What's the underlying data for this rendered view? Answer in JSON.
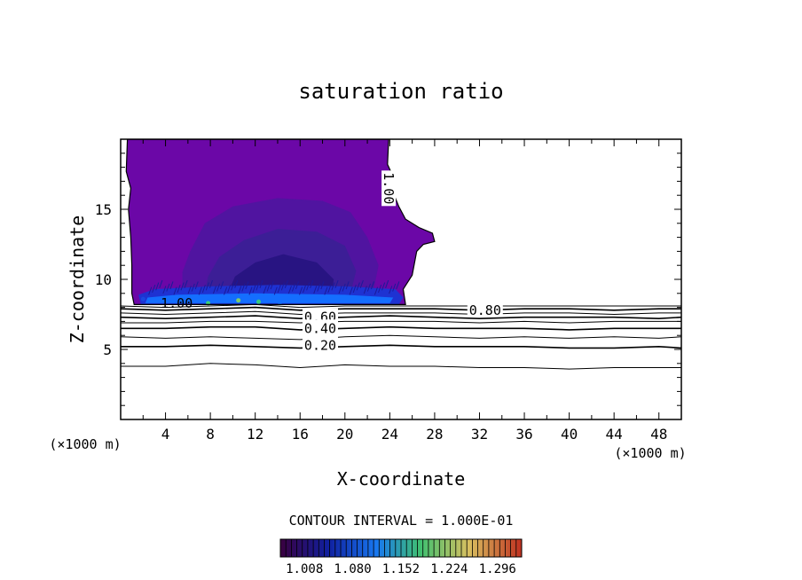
{
  "chart_data": {
    "type": "heatmap",
    "title": "saturation ratio",
    "xlabel": "X-coordinate",
    "ylabel": "Z-coordinate",
    "x_unit": "(×1000 m)",
    "z_unit": "(×1000 m)",
    "xlim": [
      0,
      50
    ],
    "ylim": [
      0,
      20
    ],
    "xticks": [
      4,
      8,
      12,
      16,
      20,
      24,
      28,
      32,
      36,
      40,
      44,
      48
    ],
    "yticks": [
      5,
      10,
      15
    ],
    "contour_interval_text": "CONTOUR INTERVAL = 1.000E-01",
    "colorbar": {
      "ticks": [
        1.008,
        1.08,
        1.152,
        1.224,
        1.296
      ],
      "tick_labels": [
        "1.008",
        "1.080",
        "1.152",
        "1.224",
        "1.296"
      ],
      "colors": [
        "#3a0040",
        "#1020a0",
        "#1878f0",
        "#40c070",
        "#d8c060",
        "#c03020"
      ]
    },
    "contour_labels": [
      {
        "text": "1.00",
        "x": 5.0,
        "y": 8.3
      },
      {
        "text": "0.60",
        "x": 17.8,
        "y": 7.3
      },
      {
        "text": "0.40",
        "x": 17.8,
        "y": 6.5
      },
      {
        "text": "0.20",
        "x": 17.8,
        "y": 5.3
      },
      {
        "text": "0.80",
        "x": 32.5,
        "y": 7.8
      },
      {
        "text": "1.00",
        "x": 23.9,
        "y": 16.5
      }
    ],
    "contour_lines": [
      {
        "level": 0.1,
        "points": [
          [
            0,
            3.8
          ],
          [
            4,
            3.8
          ],
          [
            8,
            4.0
          ],
          [
            12,
            3.9
          ],
          [
            16,
            3.7
          ],
          [
            20,
            3.9
          ],
          [
            24,
            3.8
          ],
          [
            28,
            3.8
          ],
          [
            32,
            3.7
          ],
          [
            36,
            3.7
          ],
          [
            40,
            3.6
          ],
          [
            44,
            3.7
          ],
          [
            48,
            3.7
          ],
          [
            50,
            3.7
          ]
        ]
      },
      {
        "level": 0.2,
        "points": [
          [
            0,
            5.2
          ],
          [
            4,
            5.2
          ],
          [
            8,
            5.3
          ],
          [
            12,
            5.2
          ],
          [
            16,
            5.1
          ],
          [
            20,
            5.2
          ],
          [
            24,
            5.3
          ],
          [
            28,
            5.2
          ],
          [
            32,
            5.2
          ],
          [
            36,
            5.2
          ],
          [
            40,
            5.1
          ],
          [
            44,
            5.1
          ],
          [
            48,
            5.2
          ],
          [
            50,
            5.1
          ]
        ]
      },
      {
        "level": 0.3,
        "points": [
          [
            0,
            5.9
          ],
          [
            4,
            5.8
          ],
          [
            8,
            5.9
          ],
          [
            12,
            5.8
          ],
          [
            16,
            5.7
          ],
          [
            20,
            5.9
          ],
          [
            24,
            6.0
          ],
          [
            28,
            5.9
          ],
          [
            32,
            5.8
          ],
          [
            36,
            5.9
          ],
          [
            40,
            5.8
          ],
          [
            44,
            5.9
          ],
          [
            48,
            5.8
          ],
          [
            50,
            5.9
          ]
        ]
      },
      {
        "level": 0.4,
        "points": [
          [
            0,
            6.5
          ],
          [
            4,
            6.5
          ],
          [
            8,
            6.6
          ],
          [
            12,
            6.6
          ],
          [
            16,
            6.4
          ],
          [
            20,
            6.5
          ],
          [
            24,
            6.6
          ],
          [
            28,
            6.5
          ],
          [
            32,
            6.5
          ],
          [
            36,
            6.5
          ],
          [
            40,
            6.4
          ],
          [
            44,
            6.5
          ],
          [
            48,
            6.5
          ],
          [
            50,
            6.5
          ]
        ]
      },
      {
        "level": 0.5,
        "points": [
          [
            0,
            6.9
          ],
          [
            4,
            6.9
          ],
          [
            8,
            7.0
          ],
          [
            12,
            7.0
          ],
          [
            16,
            6.9
          ],
          [
            20,
            7.0
          ],
          [
            24,
            7.0
          ],
          [
            28,
            7.0
          ],
          [
            32,
            6.9
          ],
          [
            36,
            7.0
          ],
          [
            40,
            6.9
          ],
          [
            44,
            7.0
          ],
          [
            48,
            7.0
          ],
          [
            50,
            7.0
          ]
        ]
      },
      {
        "level": 0.6,
        "points": [
          [
            0,
            7.3
          ],
          [
            4,
            7.2
          ],
          [
            8,
            7.3
          ],
          [
            12,
            7.4
          ],
          [
            16,
            7.2
          ],
          [
            20,
            7.3
          ],
          [
            24,
            7.4
          ],
          [
            28,
            7.3
          ],
          [
            32,
            7.2
          ],
          [
            36,
            7.3
          ],
          [
            40,
            7.3
          ],
          [
            44,
            7.3
          ],
          [
            48,
            7.2
          ],
          [
            50,
            7.3
          ]
        ]
      },
      {
        "level": 0.7,
        "points": [
          [
            0,
            7.6
          ],
          [
            4,
            7.5
          ],
          [
            8,
            7.6
          ],
          [
            12,
            7.7
          ],
          [
            16,
            7.5
          ],
          [
            20,
            7.6
          ],
          [
            24,
            7.6
          ],
          [
            28,
            7.6
          ],
          [
            32,
            7.5
          ],
          [
            36,
            7.6
          ],
          [
            40,
            7.6
          ],
          [
            44,
            7.5
          ],
          [
            48,
            7.6
          ],
          [
            50,
            7.6
          ]
        ]
      },
      {
        "level": 0.8,
        "points": [
          [
            0,
            7.9
          ],
          [
            4,
            7.8
          ],
          [
            8,
            7.9
          ],
          [
            12,
            8.0
          ],
          [
            16,
            7.8
          ],
          [
            20,
            7.9
          ],
          [
            24,
            7.9
          ],
          [
            28,
            7.9
          ],
          [
            32,
            7.8
          ],
          [
            36,
            7.9
          ],
          [
            40,
            7.9
          ],
          [
            44,
            7.8
          ],
          [
            48,
            7.9
          ],
          [
            50,
            7.9
          ]
        ]
      },
      {
        "level": 0.9,
        "points": [
          [
            0,
            8.1
          ],
          [
            4,
            8.0
          ],
          [
            8,
            8.1
          ],
          [
            12,
            8.2
          ],
          [
            16,
            8.0
          ],
          [
            20,
            8.1
          ],
          [
            24,
            8.1
          ],
          [
            28,
            8.1
          ],
          [
            32,
            8.1
          ],
          [
            36,
            8.1
          ],
          [
            40,
            8.1
          ],
          [
            44,
            8.1
          ],
          [
            48,
            8.1
          ],
          [
            50,
            8.1
          ]
        ]
      }
    ],
    "supersaturated_region": {
      "level": 1.0,
      "outline": [
        [
          1.2,
          8.2
        ],
        [
          25.4,
          8.2
        ],
        [
          25.2,
          9.3
        ],
        [
          26.0,
          10.3
        ],
        [
          26.4,
          12.0
        ],
        [
          27.0,
          12.5
        ],
        [
          28.0,
          12.7
        ],
        [
          27.8,
          13.3
        ],
        [
          26.6,
          13.7
        ],
        [
          25.4,
          14.3
        ],
        [
          24.8,
          15.2
        ],
        [
          24.4,
          16.0
        ],
        [
          23.6,
          16.5
        ],
        [
          23.7,
          17.0
        ],
        [
          24.2,
          17.5
        ],
        [
          23.8,
          18.2
        ],
        [
          23.9,
          20.0
        ],
        [
          0.6,
          20.0
        ],
        [
          0.5,
          17.7
        ],
        [
          0.9,
          16.5
        ],
        [
          0.7,
          15.0
        ],
        [
          0.9,
          13.0
        ],
        [
          1.0,
          11.0
        ],
        [
          1.0,
          9.0
        ]
      ],
      "layers": [
        {
          "value": 1.01,
          "outline": [
            [
              1.2,
              8.2
            ],
            [
              25.4,
              8.2
            ],
            [
              25.2,
              9.3
            ],
            [
              26.0,
              10.3
            ],
            [
              26.4,
              12.0
            ],
            [
              27.0,
              12.5
            ],
            [
              28.0,
              12.7
            ],
            [
              27.8,
              13.3
            ],
            [
              26.6,
              13.7
            ],
            [
              25.4,
              14.3
            ],
            [
              24.8,
              15.2
            ],
            [
              24.4,
              16.0
            ],
            [
              23.6,
              16.5
            ],
            [
              23.7,
              17.0
            ],
            [
              24.2,
              17.5
            ],
            [
              23.8,
              18.2
            ],
            [
              23.9,
              20.0
            ],
            [
              0.6,
              20.0
            ],
            [
              0.5,
              17.7
            ],
            [
              0.9,
              16.5
            ],
            [
              0.7,
              15.0
            ],
            [
              0.9,
              13.0
            ],
            [
              1.0,
              11.0
            ],
            [
              1.0,
              9.0
            ]
          ]
        },
        {
          "value": 1.03,
          "outline": [
            [
              5.5,
              9.0
            ],
            [
              22.5,
              9.0
            ],
            [
              23.0,
              11.0
            ],
            [
              22.0,
              13.0
            ],
            [
              20.5,
              14.8
            ],
            [
              18.0,
              15.6
            ],
            [
              14.0,
              15.8
            ],
            [
              10.0,
              15.2
            ],
            [
              7.5,
              14.0
            ],
            [
              6.2,
              12.0
            ],
            [
              5.5,
              10.5
            ]
          ]
        },
        {
          "value": 1.05,
          "outline": [
            [
              7.5,
              9.0
            ],
            [
              20.5,
              9.0
            ],
            [
              21.0,
              10.6
            ],
            [
              20.0,
              12.4
            ],
            [
              17.5,
              13.4
            ],
            [
              14.0,
              13.6
            ],
            [
              11.0,
              12.8
            ],
            [
              8.8,
              11.6
            ],
            [
              7.8,
              10.2
            ]
          ]
        },
        {
          "value": 1.07,
          "outline": [
            [
              9.5,
              8.9
            ],
            [
              18.8,
              8.9
            ],
            [
              19.0,
              10.0
            ],
            [
              17.5,
              11.2
            ],
            [
              14.5,
              11.8
            ],
            [
              12.0,
              11.2
            ],
            [
              10.2,
              10.2
            ]
          ]
        },
        {
          "value": 1.09,
          "outline": [
            [
              1.8,
              8.2
            ],
            [
              24.8,
              8.2
            ],
            [
              25.2,
              8.7
            ],
            [
              24.5,
              9.3
            ],
            [
              20.0,
              9.5
            ],
            [
              14.0,
              9.6
            ],
            [
              8.0,
              9.5
            ],
            [
              3.0,
              9.3
            ],
            [
              1.6,
              8.9
            ]
          ]
        },
        {
          "value": 1.12,
          "outline": [
            [
              2.2,
              8.3
            ],
            [
              24.0,
              8.3
            ],
            [
              24.3,
              8.7
            ],
            [
              20.0,
              8.9
            ],
            [
              12.0,
              9.0
            ],
            [
              5.0,
              8.9
            ],
            [
              2.4,
              8.7
            ]
          ]
        }
      ],
      "max_spots": [
        {
          "x": 7.8,
          "y": 8.3,
          "value": 1.152
        },
        {
          "x": 10.5,
          "y": 8.5,
          "value": 1.18
        },
        {
          "x": 12.3,
          "y": 8.4,
          "value": 1.15
        },
        {
          "x": 14.2,
          "y": 8.35,
          "value": 1.12
        },
        {
          "x": 2.0,
          "y": 8.6,
          "value": 1.1
        }
      ]
    }
  }
}
